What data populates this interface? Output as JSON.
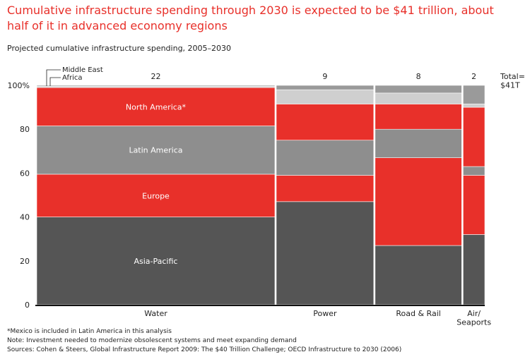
{
  "title": "Cumulative infrastructure spending through 2030 is expected to be $41 trillion, about half of it in advanced economy regions",
  "subtitle": "Projected cumulative infrastructure spending, 2005–2030",
  "footnotes": [
    "*Mexico is included in Latin America in this analysis",
    "Note: Investment needed to modernize obsolescent systems and meet expanding demand",
    "Sources: Cohen & Steers, Global Infrastructure Report 2009: The $40 Trillion Challenge; OECD Infrastructure to 2030 (2006)"
  ],
  "colors": {
    "asia_pacific": "#555555",
    "europe": "#e8302a",
    "latin_america": "#8e8e8e",
    "north_america": "#e8302a",
    "africa": "#cfcfcf",
    "middle_east": "#9a9a9a"
  },
  "chart_data": {
    "type": "marimekko",
    "unit_y": "%",
    "ylim": [
      0,
      100
    ],
    "yticks": [
      "0",
      "20",
      "40",
      "60",
      "80",
      "100%"
    ],
    "total_label": "Total=\n$41T",
    "segment_order": [
      "Asia-Pacific",
      "Europe",
      "Latin America",
      "North America*",
      "Africa",
      "Middle East"
    ],
    "legend_callouts": [
      "Middle East",
      "Africa"
    ],
    "categories": [
      {
        "name": "Water",
        "total": 22,
        "total_label": "22",
        "segments": [
          {
            "name": "Asia-Pacific",
            "value": 40,
            "label": "Asia-Pacific"
          },
          {
            "name": "Europe",
            "value": 19.5,
            "label": "Europe"
          },
          {
            "name": "Latin America",
            "value": 22,
            "label": "Latin America"
          },
          {
            "name": "North America*",
            "value": 17.5,
            "label": "North America*"
          },
          {
            "name": "Africa",
            "value": 0.6,
            "label": ""
          },
          {
            "name": "Middle East",
            "value": 0.4,
            "label": ""
          }
        ]
      },
      {
        "name": "Power",
        "total": 9,
        "total_label": "9",
        "segments": [
          {
            "name": "Asia-Pacific",
            "value": 47,
            "label": ""
          },
          {
            "name": "Europe",
            "value": 12,
            "label": ""
          },
          {
            "name": "Latin America",
            "value": 16,
            "label": ""
          },
          {
            "name": "North America*",
            "value": 16.5,
            "label": ""
          },
          {
            "name": "Africa",
            "value": 6.5,
            "label": ""
          },
          {
            "name": "Middle East",
            "value": 2,
            "label": ""
          }
        ]
      },
      {
        "name": "Road & Rail",
        "total": 8,
        "total_label": "8",
        "segments": [
          {
            "name": "Asia-Pacific",
            "value": 27,
            "label": ""
          },
          {
            "name": "Europe",
            "value": 40,
            "label": ""
          },
          {
            "name": "Latin America",
            "value": 13,
            "label": ""
          },
          {
            "name": "North America*",
            "value": 11.5,
            "label": ""
          },
          {
            "name": "Africa",
            "value": 5,
            "label": ""
          },
          {
            "name": "Middle East",
            "value": 3.5,
            "label": ""
          }
        ]
      },
      {
        "name": "Air/\nSeaports",
        "total": 2,
        "total_label": "2",
        "segments": [
          {
            "name": "Asia-Pacific",
            "value": 32,
            "label": ""
          },
          {
            "name": "Europe",
            "value": 27,
            "label": ""
          },
          {
            "name": "Latin America",
            "value": 4,
            "label": ""
          },
          {
            "name": "North America*",
            "value": 27,
            "label": ""
          },
          {
            "name": "Africa",
            "value": 1.5,
            "label": ""
          },
          {
            "name": "Middle East",
            "value": 8.5,
            "label": ""
          }
        ]
      }
    ]
  }
}
